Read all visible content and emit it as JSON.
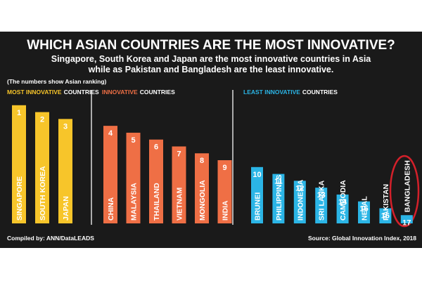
{
  "chart_data": {
    "type": "bar",
    "title": "WHICH ASIAN COUNTRIES ARE THE MOST INNOVATIVE?",
    "subtitle": [
      "Singapore, South Korea and Japan are the most innovative countries in Asia",
      "while as Pakistan and Bangladesh are the least innovative."
    ],
    "note": "(The numbers show Asian ranking)",
    "ylim": [
      18.2,
      0
    ],
    "series": [
      {
        "name": "MOST INNOVATIVE",
        "name_suffix": "COUNTRIES",
        "color": "#f7c52a",
        "categories": [
          "SINGAPORE",
          "SOUTH KOREA",
          "JAPAN"
        ],
        "values": [
          1,
          2,
          3
        ]
      },
      {
        "name": "INNOVATIVE",
        "name_suffix": "COUNTRIES",
        "color": "#ef6f45",
        "categories": [
          "CHINA",
          "MALAYSIA",
          "THAILAND",
          "VIETNAM",
          "MONGOLIA",
          "INDIA"
        ],
        "values": [
          4,
          5,
          6,
          7,
          8,
          9
        ]
      },
      {
        "name": "LEAST INNOVATIVE",
        "name_suffix": "COUNTRIES",
        "color": "#2bb5e6",
        "categories": [
          "BRUNEI",
          "PHILIPPINES",
          "INDONESIA",
          "SRI LANKA",
          "CAMBODIA",
          "NEPAL",
          "PAKISTAN",
          "BANGLADESH"
        ],
        "values": [
          10,
          11,
          12,
          13,
          14,
          15,
          16,
          17
        ]
      }
    ],
    "credit": "Compiled by: ANN/DataLEADS",
    "source": "Source: Global Innovation Index, 2018"
  }
}
